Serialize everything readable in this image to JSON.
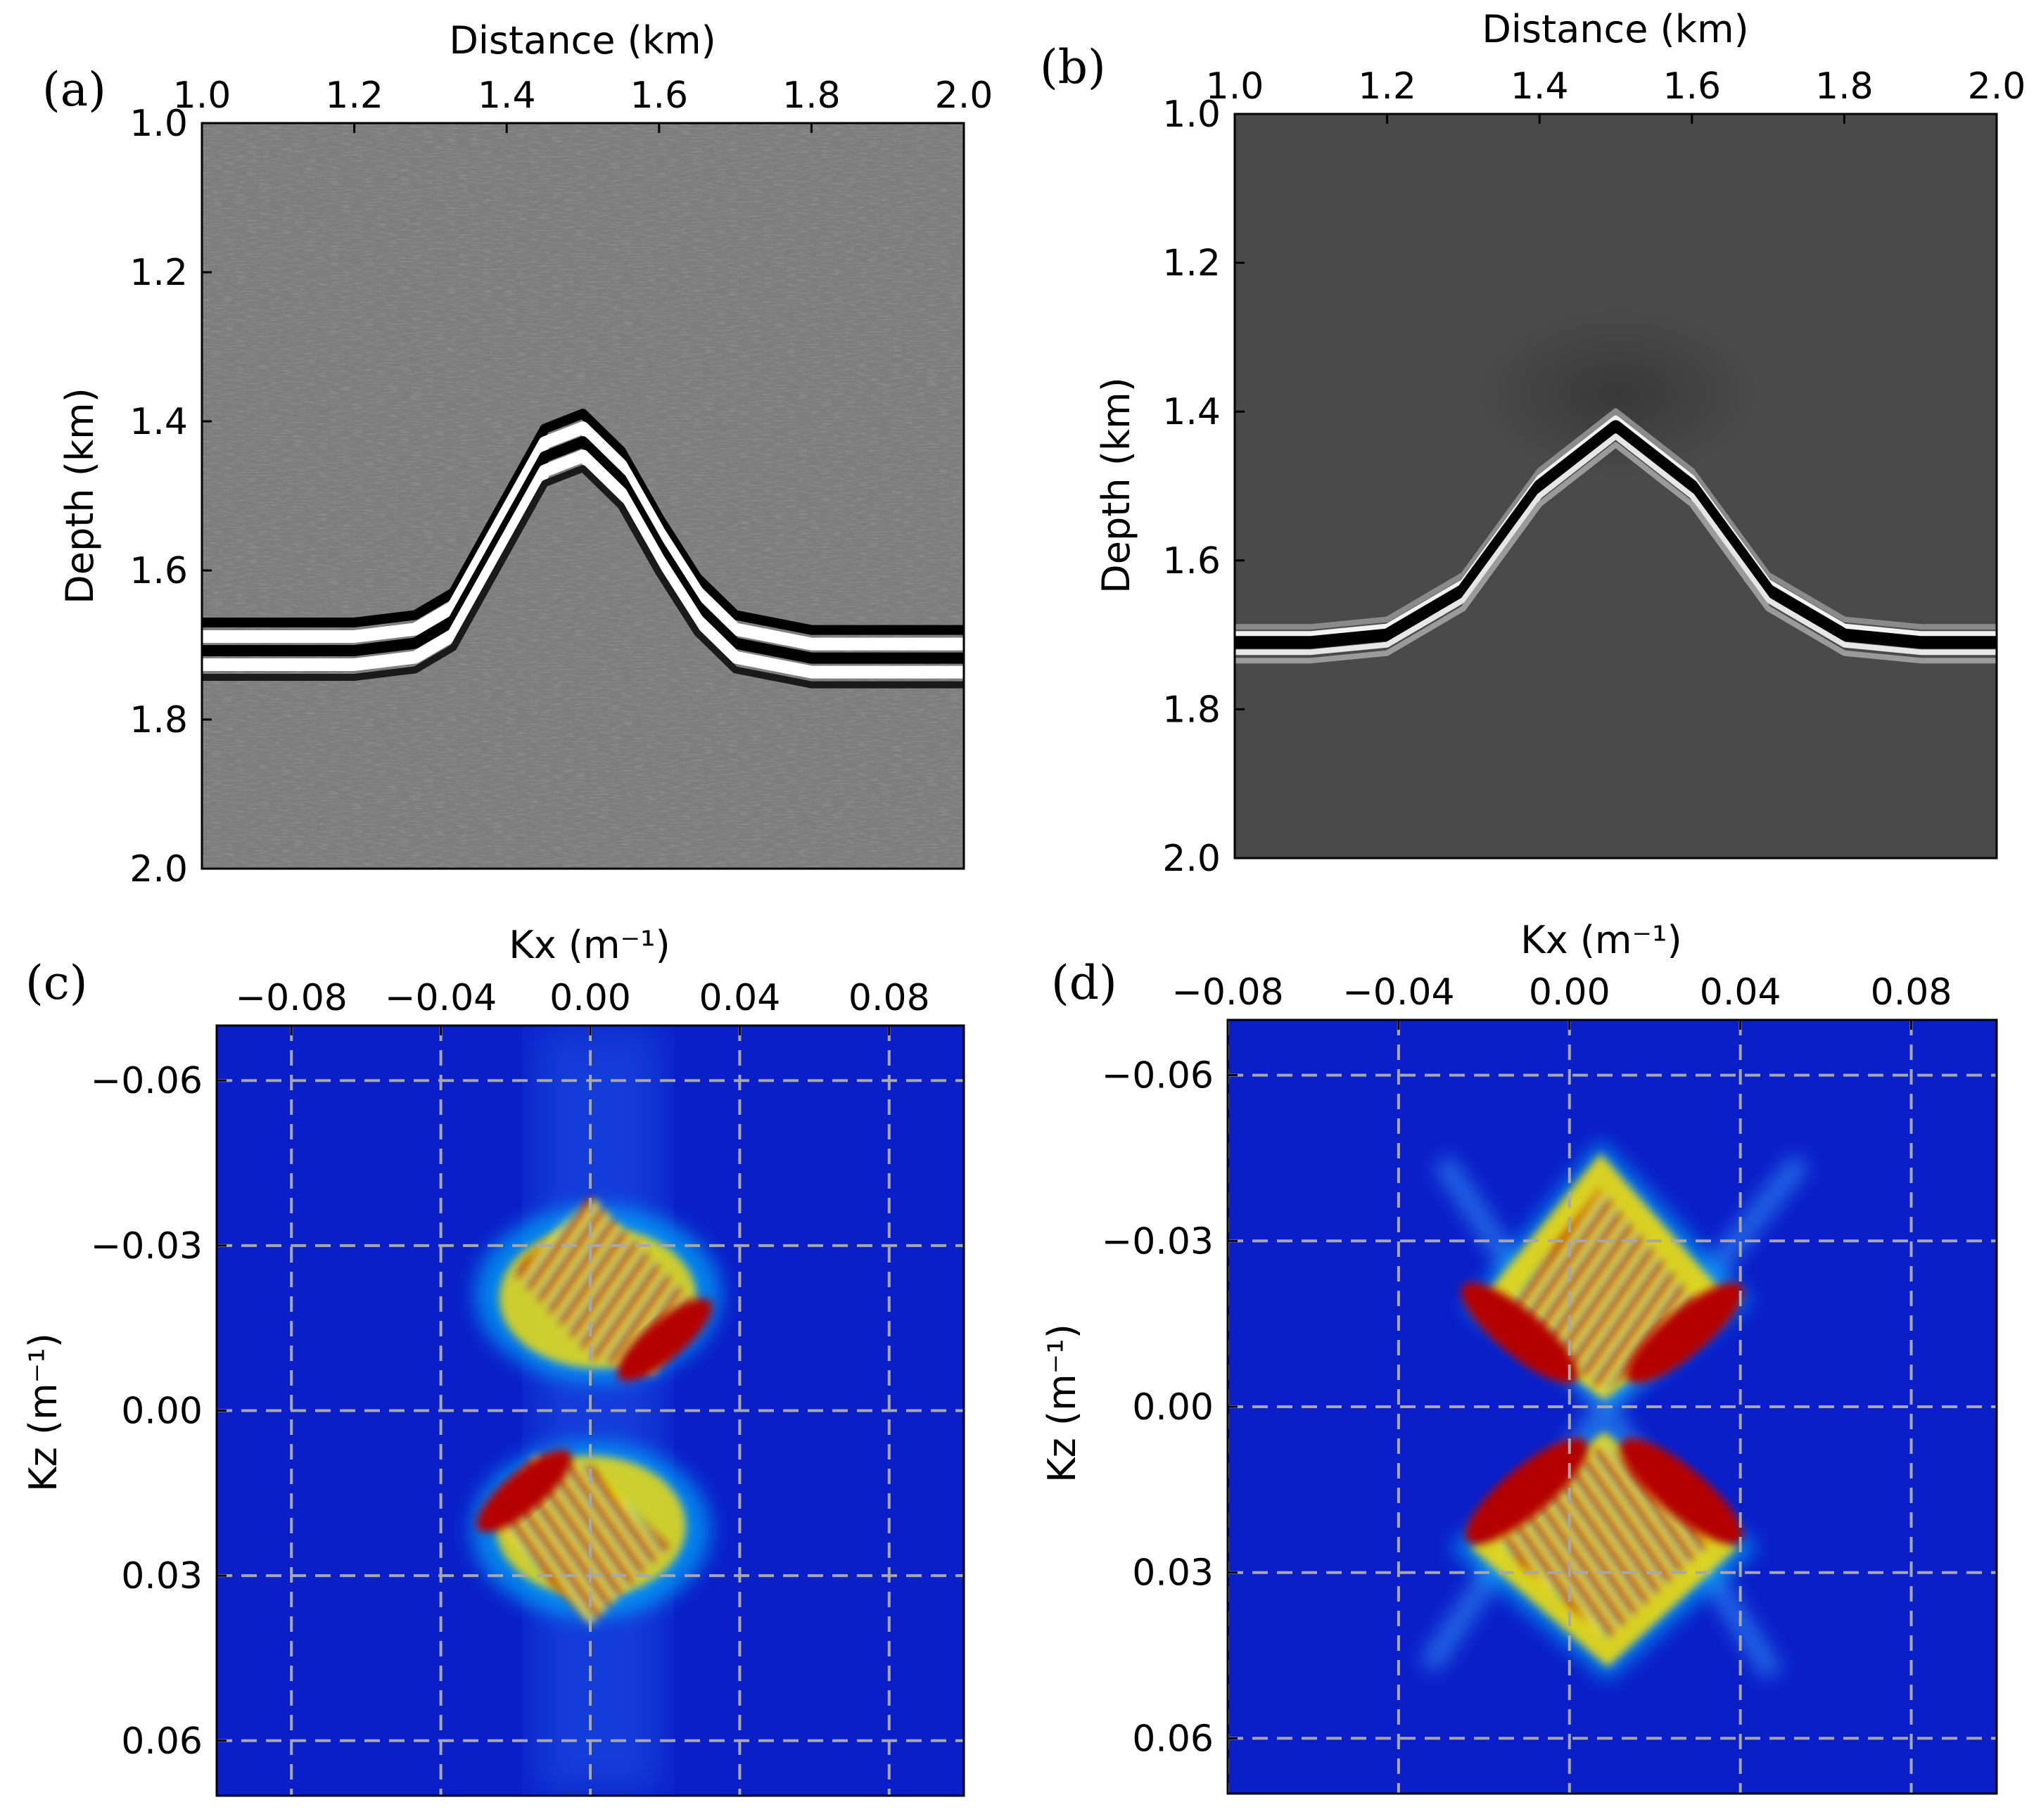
{
  "chart_data": [
    {
      "type": "heatmap",
      "panel_label": "(a)",
      "xlabel": "Distance (km)",
      "ylabel": "Depth (km)",
      "xlim": [
        1.0,
        2.0
      ],
      "ylim": [
        1.0,
        2.0
      ],
      "xticks": [
        "1.0",
        "1.2",
        "1.4",
        "1.6",
        "1.8",
        "2.0"
      ],
      "xtick_values": [
        1.0,
        1.2,
        1.4,
        1.6,
        1.8,
        2.0
      ],
      "yticks": [
        "1.0",
        "1.2",
        "1.4",
        "1.6",
        "1.8",
        "2.0"
      ],
      "ytick_values": [
        1.0,
        1.2,
        1.4,
        1.6,
        1.8,
        2.0
      ],
      "xaxis_position": "top",
      "colormap": "gray",
      "grid": false,
      "content": "noisy migrated image with a broken anticline reflector",
      "reflector_x": [
        1.0,
        1.1,
        1.2,
        1.28,
        1.33,
        1.45,
        1.5,
        1.55,
        1.6,
        1.65,
        1.7,
        1.8,
        2.0
      ],
      "reflector_depth": [
        1.7,
        1.7,
        1.7,
        1.69,
        1.66,
        1.44,
        1.42,
        1.47,
        1.56,
        1.64,
        1.69,
        1.71,
        1.71
      ]
    },
    {
      "type": "heatmap",
      "panel_label": "(b)",
      "xlabel": "Distance (km)",
      "ylabel": "Depth (km)",
      "xlim": [
        1.0,
        2.0
      ],
      "ylim": [
        1.0,
        2.0
      ],
      "xticks": [
        "1.0",
        "1.2",
        "1.4",
        "1.6",
        "1.8",
        "2.0"
      ],
      "xtick_values": [
        1.0,
        1.2,
        1.4,
        1.6,
        1.8,
        2.0
      ],
      "yticks": [
        "1.0",
        "1.2",
        "1.4",
        "1.6",
        "1.8",
        "2.0"
      ],
      "ytick_values": [
        1.0,
        1.2,
        1.4,
        1.6,
        1.8,
        2.0
      ],
      "xaxis_position": "top",
      "colormap": "gray",
      "grid": false,
      "content": "clean anticline reflector",
      "reflector_x": [
        1.0,
        1.1,
        1.2,
        1.3,
        1.4,
        1.5,
        1.6,
        1.7,
        1.8,
        1.9,
        2.0
      ],
      "reflector_depth": [
        1.71,
        1.71,
        1.7,
        1.64,
        1.5,
        1.42,
        1.5,
        1.64,
        1.7,
        1.71,
        1.71
      ]
    },
    {
      "type": "heatmap",
      "panel_label": "(c)",
      "xlabel": "Kx (m⁻¹)",
      "ylabel": "Kz (m⁻¹)",
      "xlim": [
        -0.1,
        0.1
      ],
      "ylim": [
        -0.07,
        0.07
      ],
      "xticks": [
        "−0.08",
        "−0.04",
        "0.00",
        "0.04",
        "0.08"
      ],
      "xtick_values": [
        -0.08,
        -0.04,
        0.0,
        0.04,
        0.08
      ],
      "yticks": [
        "−0.06",
        "−0.03",
        "0.00",
        "0.03",
        "0.06"
      ],
      "ytick_values": [
        -0.06,
        -0.03,
        0.0,
        0.03,
        0.06
      ],
      "xaxis_position": "top",
      "colormap": "jet",
      "grid": true,
      "content": "wavenumber spectrum of (a): two energy lobes with incomplete dip coverage"
    },
    {
      "type": "heatmap",
      "panel_label": "(d)",
      "xlabel": "Kx (m⁻¹)",
      "ylabel": "Kz (m⁻¹)",
      "xlim": [
        -0.08,
        0.1
      ],
      "ylim": [
        -0.07,
        0.07
      ],
      "xticks": [
        "−0.08",
        "−0.04",
        "0.00",
        "0.04",
        "0.08"
      ],
      "xtick_values": [
        -0.08,
        -0.04,
        0.0,
        0.04,
        0.08
      ],
      "yticks": [
        "−0.06",
        "−0.03",
        "0.00",
        "0.03",
        "0.06"
      ],
      "ytick_values": [
        -0.06,
        -0.03,
        0.0,
        0.03,
        0.06
      ],
      "xaxis_position": "top",
      "colormap": "jet",
      "grid": true,
      "content": "wavenumber spectrum of (b): symmetric hourglass-shaped energy"
    }
  ]
}
